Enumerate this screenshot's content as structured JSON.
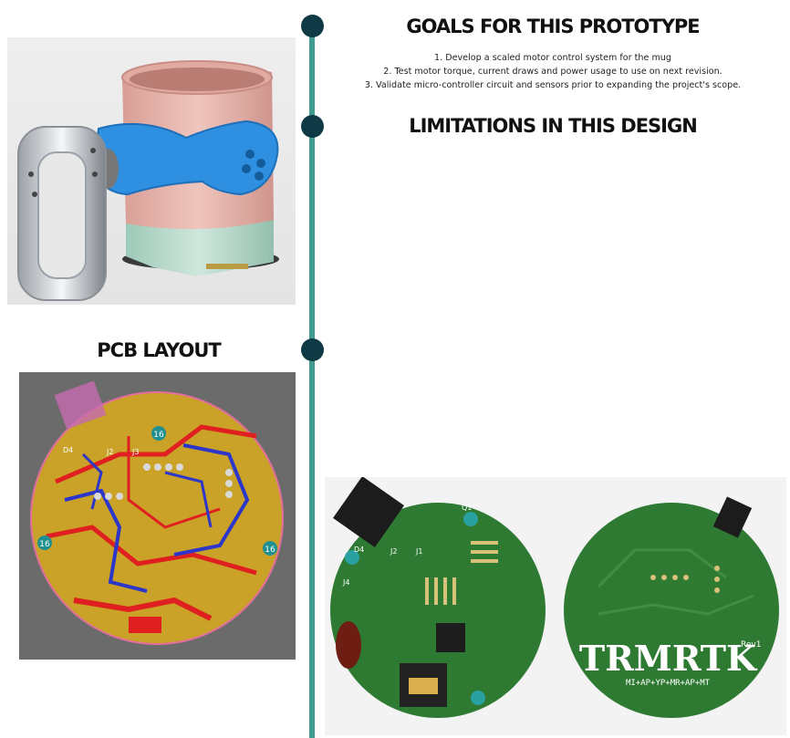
{
  "sections": {
    "goals": {
      "title": "GOALS FOR THIS PROTOTYPE",
      "items": [
        "1. Develop a scaled motor control system for the mug",
        "2. Test motor torque, current draws and power usage to use on next revision.",
        "3. Validate micro-controller circuit and sensors prior to expanding the project's scope."
      ]
    },
    "limitations": {
      "title": "LIMITATIONS IN THIS DESIGN"
    },
    "pcb": {
      "title": "PCB LAYOUT"
    }
  },
  "pcb_layout": {
    "markers": [
      "16",
      "16",
      "16"
    ],
    "ref_labels": [
      "D4",
      "J2",
      "J3"
    ]
  },
  "photos": {
    "board_front": {
      "labels": [
        "D4",
        "J2",
        "J1",
        "J4",
        "Q1"
      ]
    },
    "board_back": {
      "brand": "TRMRTK",
      "sub": "MI+AP+YP+MR+AP+MT",
      "rev": "Rev1"
    }
  },
  "colors": {
    "timeline": "#3f9c8e",
    "dot": "#0f3a45",
    "pcb_copper": "#c9a227",
    "pcb_board": "#2f7a33",
    "mug_blue": "#2f8fe0",
    "mug_pink": "#e7b6ad"
  }
}
